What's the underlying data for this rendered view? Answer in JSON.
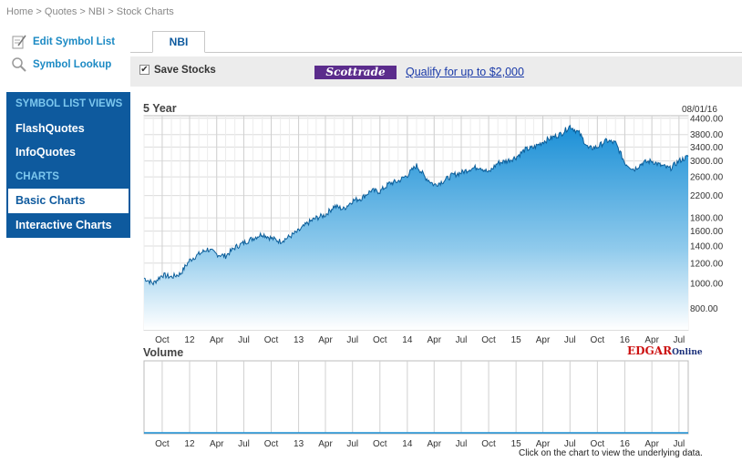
{
  "breadcrumb": {
    "items": [
      "Home",
      "Quotes",
      "NBI",
      "Stock Charts"
    ],
    "separator": " > "
  },
  "side_links": {
    "edit_symbol_list": "Edit Symbol List",
    "symbol_lookup": "Symbol Lookup"
  },
  "nav": {
    "header_symbol_views": "SYMBOL LIST VIEWS",
    "flashquotes": "FlashQuotes",
    "infoquotes": "InfoQuotes",
    "header_charts": "CHARTS",
    "basic_charts": "Basic Charts",
    "interactive_charts": "Interactive Charts"
  },
  "tab": {
    "label": "NBI"
  },
  "savebar": {
    "save_stocks": "Save Stocks",
    "checked": true,
    "ad_logo": "Scottrade",
    "ad_link": "Qualify for up to $2,000"
  },
  "chart": {
    "period": "5 Year",
    "date": "08/01/16",
    "volume_title": "Volume",
    "edgar": "EDGAR",
    "edgar_online": "Online",
    "footnote": "Click on the chart to view the underlying data.",
    "colors": {
      "fill_top": "#1a8fd6",
      "fill_bottom": "#ffffff",
      "line": "#0b5e9a",
      "grid": "#dcdcdc"
    }
  },
  "chart_data": {
    "type": "area",
    "title": "5 Year",
    "scale": "log",
    "ylim": [
      660,
      4500
    ],
    "y_ticks": [
      800,
      1000,
      1200,
      1400,
      1600,
      1800,
      2200,
      2600,
      3000,
      3400,
      3800,
      4400
    ],
    "y_tick_labels": [
      "800.00",
      "1000.00",
      "1200.00",
      "1400.00",
      "1600.00",
      "1800.00",
      "2200.00",
      "2600.00",
      "3000.00",
      "3400.00",
      "3800.00",
      "4400.00"
    ],
    "x_tick_labels": [
      "Oct",
      "12",
      "Apr",
      "Jul",
      "Oct",
      "13",
      "Apr",
      "Jul",
      "Oct",
      "14",
      "Apr",
      "Jul",
      "Oct",
      "15",
      "Apr",
      "Jul",
      "Oct",
      "16",
      "Apr",
      "Jul"
    ],
    "x_tick_dates": [
      "2011-10",
      "2012-01",
      "2012-04",
      "2012-07",
      "2012-10",
      "2013-01",
      "2013-04",
      "2013-07",
      "2013-10",
      "2014-01",
      "2014-04",
      "2014-07",
      "2014-10",
      "2015-01",
      "2015-04",
      "2015-07",
      "2015-10",
      "2016-01",
      "2016-04",
      "2016-07"
    ],
    "x_range": [
      "2011-08-01",
      "2016-08-01"
    ],
    "series": [
      {
        "values": [
          [
            "2011-08",
            1050
          ],
          [
            "2011-09",
            1000
          ],
          [
            "2011-10",
            1080
          ],
          [
            "2011-11",
            1060
          ],
          [
            "2011-12",
            1090
          ],
          [
            "2012-01",
            1230
          ],
          [
            "2012-02",
            1300
          ],
          [
            "2012-03",
            1360
          ],
          [
            "2012-04",
            1300
          ],
          [
            "2012-05",
            1280
          ],
          [
            "2012-06",
            1380
          ],
          [
            "2012-07",
            1440
          ],
          [
            "2012-08",
            1500
          ],
          [
            "2012-09",
            1560
          ],
          [
            "2012-10",
            1500
          ],
          [
            "2012-11",
            1460
          ],
          [
            "2012-12",
            1520
          ],
          [
            "2013-01",
            1600
          ],
          [
            "2013-02",
            1720
          ],
          [
            "2013-03",
            1800
          ],
          [
            "2013-04",
            1850
          ],
          [
            "2013-05",
            2000
          ],
          [
            "2013-06",
            1950
          ],
          [
            "2013-07",
            2100
          ],
          [
            "2013-08",
            2150
          ],
          [
            "2013-09",
            2300
          ],
          [
            "2013-10",
            2280
          ],
          [
            "2013-11",
            2450
          ],
          [
            "2013-12",
            2500
          ],
          [
            "2014-01",
            2640
          ],
          [
            "2014-02",
            2880
          ],
          [
            "2014-03",
            2600
          ],
          [
            "2014-04",
            2420
          ],
          [
            "2014-05",
            2500
          ],
          [
            "2014-06",
            2640
          ],
          [
            "2014-07",
            2700
          ],
          [
            "2014-08",
            2800
          ],
          [
            "2014-09",
            2850
          ],
          [
            "2014-10",
            2700
          ],
          [
            "2014-11",
            2950
          ],
          [
            "2014-12",
            3000
          ],
          [
            "2015-01",
            3100
          ],
          [
            "2015-02",
            3320
          ],
          [
            "2015-03",
            3380
          ],
          [
            "2015-04",
            3560
          ],
          [
            "2015-05",
            3700
          ],
          [
            "2015-06",
            3820
          ],
          [
            "2015-07",
            4100
          ],
          [
            "2015-08",
            3850
          ],
          [
            "2015-09",
            3350
          ],
          [
            "2015-10",
            3400
          ],
          [
            "2015-11",
            3600
          ],
          [
            "2015-12",
            3520
          ],
          [
            "2016-01",
            2950
          ],
          [
            "2016-02",
            2780
          ],
          [
            "2016-03",
            2950
          ],
          [
            "2016-04",
            3000
          ],
          [
            "2016-05",
            2880
          ],
          [
            "2016-06",
            2800
          ],
          [
            "2016-07",
            3000
          ],
          [
            "2016-08",
            3120
          ]
        ]
      }
    ],
    "volume": {
      "title": "Volume",
      "x_tick_labels": [
        "Oct",
        "12",
        "Apr",
        "Jul",
        "Oct",
        "13",
        "Apr",
        "Jul",
        "Oct",
        "14",
        "Apr",
        "Jul",
        "Oct",
        "15",
        "Apr",
        "Jul",
        "Oct",
        "16",
        "Apr",
        "Jul"
      ]
    },
    "grid": true
  }
}
